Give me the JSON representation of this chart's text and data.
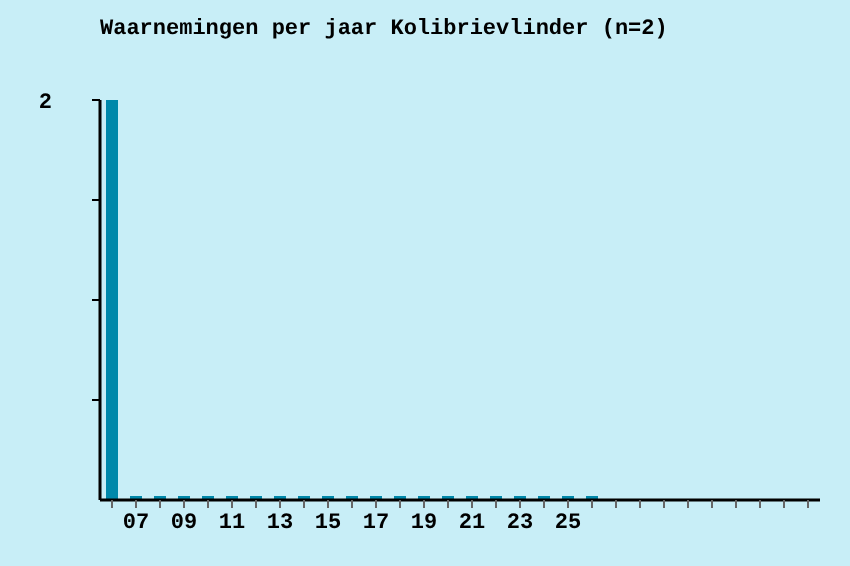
{
  "chart_data": {
    "type": "bar",
    "title": "Waarnemingen per jaar Kolibrievlinder (n=2)",
    "categories": [
      null,
      "07",
      null,
      "09",
      null,
      "11",
      null,
      "13",
      null,
      "15",
      null,
      "17",
      null,
      "19",
      null,
      "21",
      null,
      "23",
      null,
      "25",
      null,
      null,
      null,
      null,
      null,
      null,
      null,
      null,
      null,
      null
    ],
    "values": [
      2,
      0,
      0,
      0,
      0,
      0,
      0,
      0,
      0,
      0,
      0,
      0,
      0,
      0,
      0,
      0,
      0,
      0,
      0,
      0,
      0,
      null,
      null,
      null,
      null,
      null,
      null,
      null,
      null,
      null
    ],
    "color": "#0088aa",
    "ylim": [
      0,
      2
    ],
    "yticks": [
      {
        "value": 0.5,
        "label": null
      },
      {
        "value": 1,
        "label": null
      },
      {
        "value": 1.5,
        "label": null
      },
      2
    ],
    "grid": false,
    "legend": false
  }
}
